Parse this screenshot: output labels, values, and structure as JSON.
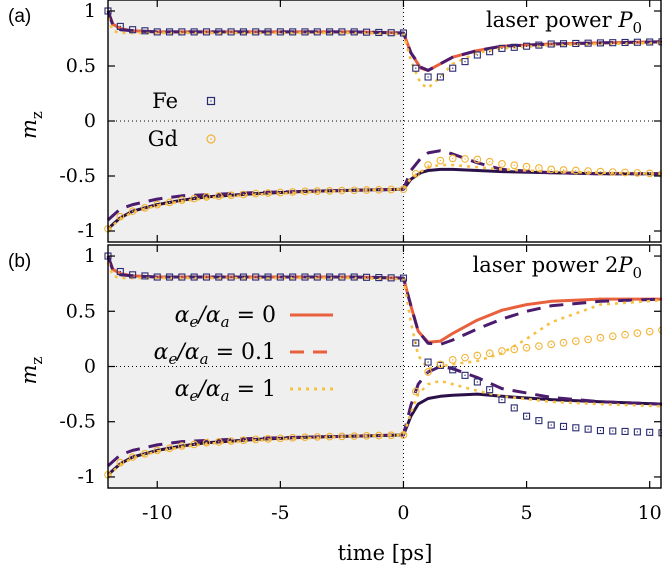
{
  "figure": {
    "xlabel": "time [ps]",
    "colors": {
      "alpha0": "#e8603c",
      "alpha01": "#4b1b6e",
      "alpha1": "#f6c143",
      "fe_marker": "#2a2a72",
      "gd_marker": "#f2b335",
      "shade": "#efefef"
    }
  },
  "chart_data": [
    {
      "type": "line",
      "panel_label": "(a)",
      "annotation": "laser power P0",
      "annotation_parts": {
        "text": "laser power ",
        "symbol": "P",
        "subscript": "0"
      },
      "ylabel": "m_z",
      "ylabel_parts": {
        "base": "m",
        "subscript": "z"
      },
      "xlim": [
        -12,
        10.5
      ],
      "ylim": [
        -1.1,
        1.1
      ],
      "xticks": [
        "-10",
        "-5",
        "0",
        "5",
        "10"
      ],
      "yticks": [
        "1",
        "0.5",
        "0",
        "-0.5",
        "-1"
      ],
      "shaded_region": [
        -12,
        0
      ],
      "legend": [
        {
          "label": "Fe",
          "marker": "square"
        },
        {
          "label": "Gd",
          "marker": "circle"
        }
      ],
      "series": [
        {
          "sublattice": "Fe",
          "style": "solid",
          "alpha_ratio": 0,
          "x": [
            -12,
            -11.8,
            -11.5,
            -11,
            -10,
            -8,
            -6,
            -4,
            -2,
            0,
            0.3,
            0.7,
            1,
            1.5,
            2,
            3,
            4,
            6,
            8,
            10.5
          ],
          "y": [
            1.0,
            0.88,
            0.84,
            0.82,
            0.81,
            0.81,
            0.81,
            0.81,
            0.81,
            0.8,
            0.62,
            0.48,
            0.46,
            0.52,
            0.58,
            0.64,
            0.68,
            0.7,
            0.71,
            0.72
          ]
        },
        {
          "sublattice": "Fe",
          "style": "dashed",
          "alpha_ratio": 0.1,
          "x": [
            -12,
            -11.8,
            -11.5,
            -11,
            -10,
            -8,
            -6,
            -4,
            -2,
            0,
            0.3,
            0.7,
            1,
            1.5,
            2,
            3,
            4,
            6,
            8,
            10.5
          ],
          "y": [
            1.0,
            0.87,
            0.83,
            0.82,
            0.81,
            0.81,
            0.81,
            0.81,
            0.81,
            0.8,
            0.62,
            0.49,
            0.46,
            0.52,
            0.58,
            0.64,
            0.68,
            0.7,
            0.71,
            0.72
          ]
        },
        {
          "sublattice": "Fe",
          "style": "dotted",
          "alpha_ratio": 1,
          "x": [
            -12,
            -11.8,
            -11.5,
            -11,
            -10,
            -8,
            -6,
            -4,
            -2,
            0,
            0.3,
            0.7,
            1,
            1.5,
            2,
            3,
            4,
            6,
            8,
            10.5
          ],
          "y": [
            0.94,
            0.82,
            0.8,
            0.8,
            0.8,
            0.8,
            0.8,
            0.8,
            0.8,
            0.79,
            0.55,
            0.34,
            0.3,
            0.4,
            0.52,
            0.62,
            0.66,
            0.69,
            0.7,
            0.71
          ]
        },
        {
          "sublattice": "Gd",
          "style": "solid",
          "alpha_ratio": 0,
          "x": [
            -12,
            -11.5,
            -11,
            -10,
            -9,
            -8,
            -6,
            -4,
            -2,
            0,
            0.3,
            0.7,
            1,
            1.5,
            2,
            3,
            4,
            6,
            8,
            10.5
          ],
          "y": [
            -0.98,
            -0.88,
            -0.82,
            -0.76,
            -0.72,
            -0.69,
            -0.66,
            -0.64,
            -0.63,
            -0.62,
            -0.53,
            -0.47,
            -0.45,
            -0.44,
            -0.44,
            -0.45,
            -0.46,
            -0.47,
            -0.48,
            -0.48
          ]
        },
        {
          "sublattice": "Gd",
          "style": "dashed",
          "alpha_ratio": 0.1,
          "x": [
            -12,
            -11.5,
            -11,
            -10,
            -9,
            -8,
            -6,
            -4,
            -2,
            0,
            0.3,
            0.7,
            1,
            1.5,
            2,
            3,
            4,
            6,
            8,
            10.5
          ],
          "y": [
            -0.9,
            -0.8,
            -0.76,
            -0.71,
            -0.68,
            -0.67,
            -0.65,
            -0.64,
            -0.63,
            -0.62,
            -0.45,
            -0.34,
            -0.29,
            -0.27,
            -0.3,
            -0.38,
            -0.44,
            -0.47,
            -0.48,
            -0.48
          ]
        },
        {
          "sublattice": "Gd",
          "style": "dotted",
          "alpha_ratio": 1,
          "x": [
            -12,
            -11.5,
            -11,
            -10,
            -9,
            -8,
            -6,
            -4,
            -2,
            0,
            0.3,
            0.7,
            1,
            1.5,
            2,
            3,
            4,
            6,
            8,
            10.5
          ],
          "y": [
            -0.99,
            -0.89,
            -0.83,
            -0.77,
            -0.73,
            -0.7,
            -0.67,
            -0.65,
            -0.63,
            -0.62,
            -0.52,
            -0.46,
            -0.42,
            -0.4,
            -0.4,
            -0.42,
            -0.44,
            -0.46,
            -0.47,
            -0.48
          ]
        },
        {
          "sublattice": "Fe",
          "style": "markers",
          "marker": "square",
          "x": [
            -12,
            -11.5,
            -11,
            -10,
            -9,
            -8,
            -6,
            -4,
            -2,
            0,
            0.5,
            1,
            1.5,
            2,
            3,
            4,
            6,
            8,
            10.5
          ],
          "y": [
            1.0,
            0.86,
            0.83,
            0.81,
            0.81,
            0.81,
            0.81,
            0.81,
            0.81,
            0.8,
            0.48,
            0.4,
            0.4,
            0.48,
            0.6,
            0.66,
            0.7,
            0.71,
            0.72
          ]
        },
        {
          "sublattice": "Gd",
          "style": "markers",
          "marker": "circle",
          "x": [
            -12,
            -11.5,
            -11,
            -10,
            -9,
            -8,
            -6,
            -4,
            -2,
            0,
            0.5,
            1,
            1.5,
            2,
            3,
            4,
            6,
            8,
            10.5
          ],
          "y": [
            -0.98,
            -0.87,
            -0.82,
            -0.76,
            -0.72,
            -0.69,
            -0.66,
            -0.64,
            -0.63,
            -0.62,
            -0.48,
            -0.4,
            -0.36,
            -0.34,
            -0.35,
            -0.39,
            -0.44,
            -0.46,
            -0.48
          ]
        }
      ]
    },
    {
      "type": "line",
      "panel_label": "(b)",
      "annotation": "laser power 2P0",
      "annotation_parts": {
        "text": "laser power 2",
        "symbol": "P",
        "subscript": "0"
      },
      "ylabel": "m_z",
      "ylabel_parts": {
        "base": "m",
        "subscript": "z"
      },
      "xlim": [
        -12,
        10.5
      ],
      "ylim": [
        -1.1,
        1.1
      ],
      "xticks": [
        "-10",
        "-5",
        "0",
        "5",
        "10"
      ],
      "yticks": [
        "1",
        "0.5",
        "0",
        "-0.5",
        "-1"
      ],
      "shaded_region": [
        -12,
        0
      ],
      "legend": [
        {
          "label": "αe/αa = 0",
          "parts": [
            "α",
            "e",
            "/α",
            "a",
            " = 0"
          ],
          "line": "solid",
          "color": "#e8603c"
        },
        {
          "label": "αe/αa = 0.1",
          "parts": [
            "α",
            "e",
            "/α",
            "a",
            " = 0.1"
          ],
          "line": "dashed",
          "color": "#e8603c"
        },
        {
          "label": "αe/αa = 1",
          "parts": [
            "α",
            "e",
            "/α",
            "a",
            " = 1"
          ],
          "line": "dotted",
          "color": "#f6c143"
        }
      ],
      "series": [
        {
          "sublattice": "Fe",
          "style": "solid",
          "alpha_ratio": 0,
          "x": [
            -12,
            -11.8,
            -11.5,
            -11,
            -10,
            -8,
            -6,
            -4,
            -2,
            0,
            0.3,
            0.6,
            1,
            1.5,
            2,
            3,
            4,
            5,
            6,
            8,
            10.5
          ],
          "y": [
            1.0,
            0.88,
            0.84,
            0.82,
            0.81,
            0.81,
            0.81,
            0.81,
            0.81,
            0.8,
            0.55,
            0.32,
            0.22,
            0.23,
            0.3,
            0.42,
            0.51,
            0.56,
            0.59,
            0.61,
            0.61
          ]
        },
        {
          "sublattice": "Fe",
          "style": "dashed",
          "alpha_ratio": 0.1,
          "x": [
            -12,
            -11.8,
            -11.5,
            -11,
            -10,
            -8,
            -6,
            -4,
            -2,
            0,
            0.3,
            0.6,
            1,
            1.5,
            2,
            3,
            4,
            5,
            6,
            8,
            10.5
          ],
          "y": [
            1.0,
            0.87,
            0.83,
            0.82,
            0.81,
            0.81,
            0.81,
            0.81,
            0.81,
            0.8,
            0.55,
            0.32,
            0.21,
            0.2,
            0.24,
            0.34,
            0.43,
            0.5,
            0.55,
            0.59,
            0.61
          ]
        },
        {
          "sublattice": "Fe",
          "style": "dotted",
          "alpha_ratio": 1,
          "x": [
            -12,
            -11.8,
            -11.5,
            -11,
            -10,
            -8,
            -6,
            -4,
            -2,
            0,
            0.3,
            0.6,
            1,
            1.5,
            2,
            3,
            4,
            5,
            6,
            8,
            10.5
          ],
          "y": [
            0.94,
            0.82,
            0.8,
            0.8,
            0.8,
            0.8,
            0.8,
            0.8,
            0.8,
            0.79,
            0.4,
            0.1,
            -0.02,
            0.0,
            0.02,
            0.05,
            0.12,
            0.25,
            0.4,
            0.56,
            0.6
          ]
        },
        {
          "sublattice": "Gd",
          "style": "solid",
          "alpha_ratio": 0,
          "x": [
            -12,
            -11.5,
            -11,
            -10,
            -9,
            -8,
            -6,
            -4,
            -2,
            0,
            0.3,
            0.6,
            1,
            1.5,
            2,
            3,
            4,
            6,
            8,
            10.5
          ],
          "y": [
            -0.98,
            -0.88,
            -0.82,
            -0.76,
            -0.72,
            -0.69,
            -0.66,
            -0.64,
            -0.63,
            -0.62,
            -0.45,
            -0.34,
            -0.29,
            -0.27,
            -0.26,
            -0.25,
            -0.27,
            -0.3,
            -0.32,
            -0.34
          ]
        },
        {
          "sublattice": "Gd",
          "style": "dashed",
          "alpha_ratio": 0.1,
          "x": [
            -12,
            -11.5,
            -11,
            -10,
            -9,
            -8,
            -6,
            -4,
            -2,
            0,
            0.3,
            0.6,
            1,
            1.5,
            2,
            3,
            4,
            6,
            8,
            10.5
          ],
          "y": [
            -0.9,
            -0.8,
            -0.76,
            -0.71,
            -0.68,
            -0.67,
            -0.65,
            -0.64,
            -0.63,
            -0.62,
            -0.35,
            -0.16,
            -0.05,
            0.0,
            -0.02,
            -0.1,
            -0.2,
            -0.28,
            -0.32,
            -0.34
          ]
        },
        {
          "sublattice": "Gd",
          "style": "dotted",
          "alpha_ratio": 1,
          "x": [
            -12,
            -11.5,
            -11,
            -10,
            -9,
            -8,
            -6,
            -4,
            -2,
            0,
            0.3,
            0.6,
            1,
            1.5,
            2,
            3,
            4,
            6,
            8,
            10.5
          ],
          "y": [
            -0.99,
            -0.89,
            -0.83,
            -0.77,
            -0.73,
            -0.7,
            -0.67,
            -0.65,
            -0.63,
            -0.62,
            -0.42,
            -0.25,
            -0.16,
            -0.13,
            -0.16,
            -0.22,
            -0.27,
            -0.32,
            -0.34,
            -0.36
          ]
        },
        {
          "sublattice": "Fe",
          "style": "markers",
          "marker": "square",
          "x": [
            -12,
            -11.5,
            -11,
            -10,
            -9,
            -8,
            -6,
            -4,
            -2,
            0,
            0.3,
            0.6,
            1,
            1.5,
            2,
            2.5,
            3,
            3.5,
            4,
            5,
            6,
            8,
            10.5
          ],
          "y": [
            1.0,
            0.86,
            0.83,
            0.81,
            0.81,
            0.81,
            0.81,
            0.81,
            0.81,
            0.8,
            0.4,
            0.12,
            0.04,
            0.01,
            -0.03,
            -0.08,
            -0.14,
            -0.21,
            -0.3,
            -0.45,
            -0.53,
            -0.58,
            -0.6
          ]
        },
        {
          "sublattice": "Gd",
          "style": "markers",
          "marker": "circle",
          "x": [
            -12,
            -11.5,
            -11,
            -10,
            -9,
            -8,
            -6,
            -4,
            -2,
            0,
            0.3,
            0.6,
            1,
            1.5,
            2,
            3,
            4,
            5,
            6,
            8,
            10.5
          ],
          "y": [
            -0.98,
            -0.87,
            -0.82,
            -0.76,
            -0.72,
            -0.69,
            -0.66,
            -0.64,
            -0.63,
            -0.62,
            -0.4,
            -0.14,
            -0.05,
            0.02,
            0.06,
            0.1,
            0.14,
            0.17,
            0.2,
            0.26,
            0.33
          ]
        }
      ]
    }
  ]
}
